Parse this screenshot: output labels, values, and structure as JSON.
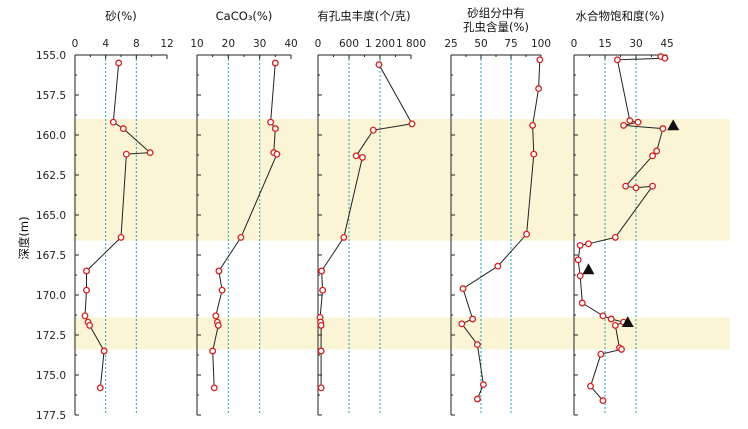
{
  "y_axis": {
    "label": "深度(m)",
    "tick_labels": [
      "155.0",
      "157.5",
      "160.0",
      "162.5",
      "165.0",
      "167.5",
      "170.0",
      "172.5",
      "175.0",
      "177.5"
    ],
    "ylim": [
      155.0,
      177.5
    ],
    "reversed": true
  },
  "colors": {
    "band": "#fbf5d6",
    "line": "#222222",
    "marker": "#d62020",
    "guide": "#1aa5b5",
    "triangle": "#111111"
  },
  "chart_data": [
    {
      "type": "line",
      "title_lines": [
        "砂(%)"
      ],
      "xlim": [
        0,
        12
      ],
      "x_tick_labels": [
        "0",
        "4",
        "8",
        "12"
      ],
      "x_tick_values": [
        0,
        4,
        8,
        12
      ],
      "guide_lines": [
        4,
        8
      ],
      "points": [
        {
          "x": 5.7,
          "y": 155.5
        },
        {
          "x": 5.0,
          "y": 159.2
        },
        {
          "x": 6.3,
          "y": 159.6
        },
        {
          "x": 9.8,
          "y": 161.1
        },
        {
          "x": 6.7,
          "y": 161.2
        },
        {
          "x": 6.0,
          "y": 166.4
        },
        {
          "x": 1.5,
          "y": 168.5
        },
        {
          "x": 1.5,
          "y": 169.7
        },
        {
          "x": 1.3,
          "y": 171.3
        },
        {
          "x": 1.7,
          "y": 171.7
        },
        {
          "x": 1.9,
          "y": 171.9
        },
        {
          "x": 3.8,
          "y": 173.5
        },
        {
          "x": 3.3,
          "y": 175.8
        }
      ]
    },
    {
      "type": "line",
      "title_lines": [
        "CaCO₃(%)"
      ],
      "xlim": [
        10,
        40
      ],
      "x_tick_labels": [
        "10",
        "20",
        "30",
        "40"
      ],
      "x_tick_values": [
        10,
        20,
        30,
        40
      ],
      "guide_lines": [
        20,
        30
      ],
      "points": [
        {
          "x": 35.0,
          "y": 155.5
        },
        {
          "x": 33.5,
          "y": 159.2
        },
        {
          "x": 35.0,
          "y": 159.6
        },
        {
          "x": 34.5,
          "y": 161.1
        },
        {
          "x": 35.5,
          "y": 161.2
        },
        {
          "x": 24.0,
          "y": 166.4
        },
        {
          "x": 17.0,
          "y": 168.5
        },
        {
          "x": 18.0,
          "y": 169.7
        },
        {
          "x": 16.0,
          "y": 171.3
        },
        {
          "x": 16.5,
          "y": 171.7
        },
        {
          "x": 16.8,
          "y": 171.9
        },
        {
          "x": 15.0,
          "y": 173.5
        },
        {
          "x": 15.5,
          "y": 175.8
        }
      ]
    },
    {
      "type": "line",
      "title_lines": [
        "有孔虫丰度(个/克)"
      ],
      "xlim": [
        0,
        1800
      ],
      "x_tick_labels": [
        "0",
        "600",
        "1 200",
        "1 800"
      ],
      "x_tick_values": [
        0,
        600,
        1200,
        1800
      ],
      "guide_lines": [
        600,
        1200
      ],
      "points": [
        {
          "x": 1180,
          "y": 155.6
        },
        {
          "x": 1820,
          "y": 159.3
        },
        {
          "x": 1070,
          "y": 159.7
        },
        {
          "x": 740,
          "y": 161.3
        },
        {
          "x": 860,
          "y": 161.4
        },
        {
          "x": 500,
          "y": 166.4
        },
        {
          "x": 70,
          "y": 168.5
        },
        {
          "x": 90,
          "y": 169.7
        },
        {
          "x": 40,
          "y": 171.4
        },
        {
          "x": 50,
          "y": 171.7
        },
        {
          "x": 60,
          "y": 171.9
        },
        {
          "x": 60,
          "y": 173.5
        },
        {
          "x": 60,
          "y": 175.8
        }
      ]
    },
    {
      "type": "line",
      "title_lines": [
        "砂组分中有",
        "孔虫含量(%)"
      ],
      "xlim": [
        25,
        100
      ],
      "x_tick_labels": [
        "25",
        "50",
        "75",
        "100"
      ],
      "x_tick_values": [
        25,
        50,
        75,
        100
      ],
      "guide_lines": [
        50,
        75
      ],
      "points": [
        {
          "x": 99,
          "y": 155.3
        },
        {
          "x": 98,
          "y": 157.1
        },
        {
          "x": 93,
          "y": 159.4
        },
        {
          "x": 94,
          "y": 161.2
        },
        {
          "x": 88,
          "y": 166.2
        },
        {
          "x": 64,
          "y": 168.2
        },
        {
          "x": 35,
          "y": 169.6
        },
        {
          "x": 43,
          "y": 171.5
        },
        {
          "x": 34,
          "y": 171.8
        },
        {
          "x": 47,
          "y": 173.1
        },
        {
          "x": 52,
          "y": 175.6
        },
        {
          "x": 47,
          "y": 176.5
        }
      ]
    },
    {
      "type": "line",
      "title_lines": [
        "水合物饱和度(%)"
      ],
      "xlim": [
        0,
        45
      ],
      "x_tick_labels": [
        "0",
        "15",
        "30",
        "45"
      ],
      "x_tick_values": [
        0,
        15,
        30,
        45
      ],
      "guide_lines": [
        15,
        30
      ],
      "points": [
        {
          "x": 42,
          "y": 155.1
        },
        {
          "x": 44,
          "y": 155.2
        },
        {
          "x": 21,
          "y": 155.3
        },
        {
          "x": 27,
          "y": 159.1
        },
        {
          "x": 31,
          "y": 159.2
        },
        {
          "x": 24,
          "y": 159.4
        },
        {
          "x": 43,
          "y": 159.6
        },
        {
          "x": 40,
          "y": 161.0
        },
        {
          "x": 38,
          "y": 161.3
        },
        {
          "x": 25,
          "y": 163.2
        },
        {
          "x": 30,
          "y": 163.3
        },
        {
          "x": 38,
          "y": 163.2
        },
        {
          "x": 20,
          "y": 166.4
        },
        {
          "x": 7,
          "y": 166.8
        },
        {
          "x": 3,
          "y": 166.9
        },
        {
          "x": 2,
          "y": 167.8
        },
        {
          "x": 3,
          "y": 168.8
        },
        {
          "x": 4,
          "y": 170.5
        },
        {
          "x": 14,
          "y": 171.3
        },
        {
          "x": 18,
          "y": 171.5
        },
        {
          "x": 24,
          "y": 171.7
        },
        {
          "x": 20,
          "y": 171.9
        },
        {
          "x": 22,
          "y": 173.3
        },
        {
          "x": 23,
          "y": 173.4
        },
        {
          "x": 13,
          "y": 173.7
        },
        {
          "x": 8,
          "y": 175.7
        },
        {
          "x": 14,
          "y": 176.6
        }
      ],
      "triangle_markers": [
        {
          "x": 48,
          "y": 159.4
        },
        {
          "x": 7,
          "y": 168.4
        },
        {
          "x": 26,
          "y": 171.7
        }
      ]
    }
  ],
  "bands": [
    {
      "from": 159.0,
      "to": 166.6
    },
    {
      "from": 171.4,
      "to": 173.4
    }
  ]
}
